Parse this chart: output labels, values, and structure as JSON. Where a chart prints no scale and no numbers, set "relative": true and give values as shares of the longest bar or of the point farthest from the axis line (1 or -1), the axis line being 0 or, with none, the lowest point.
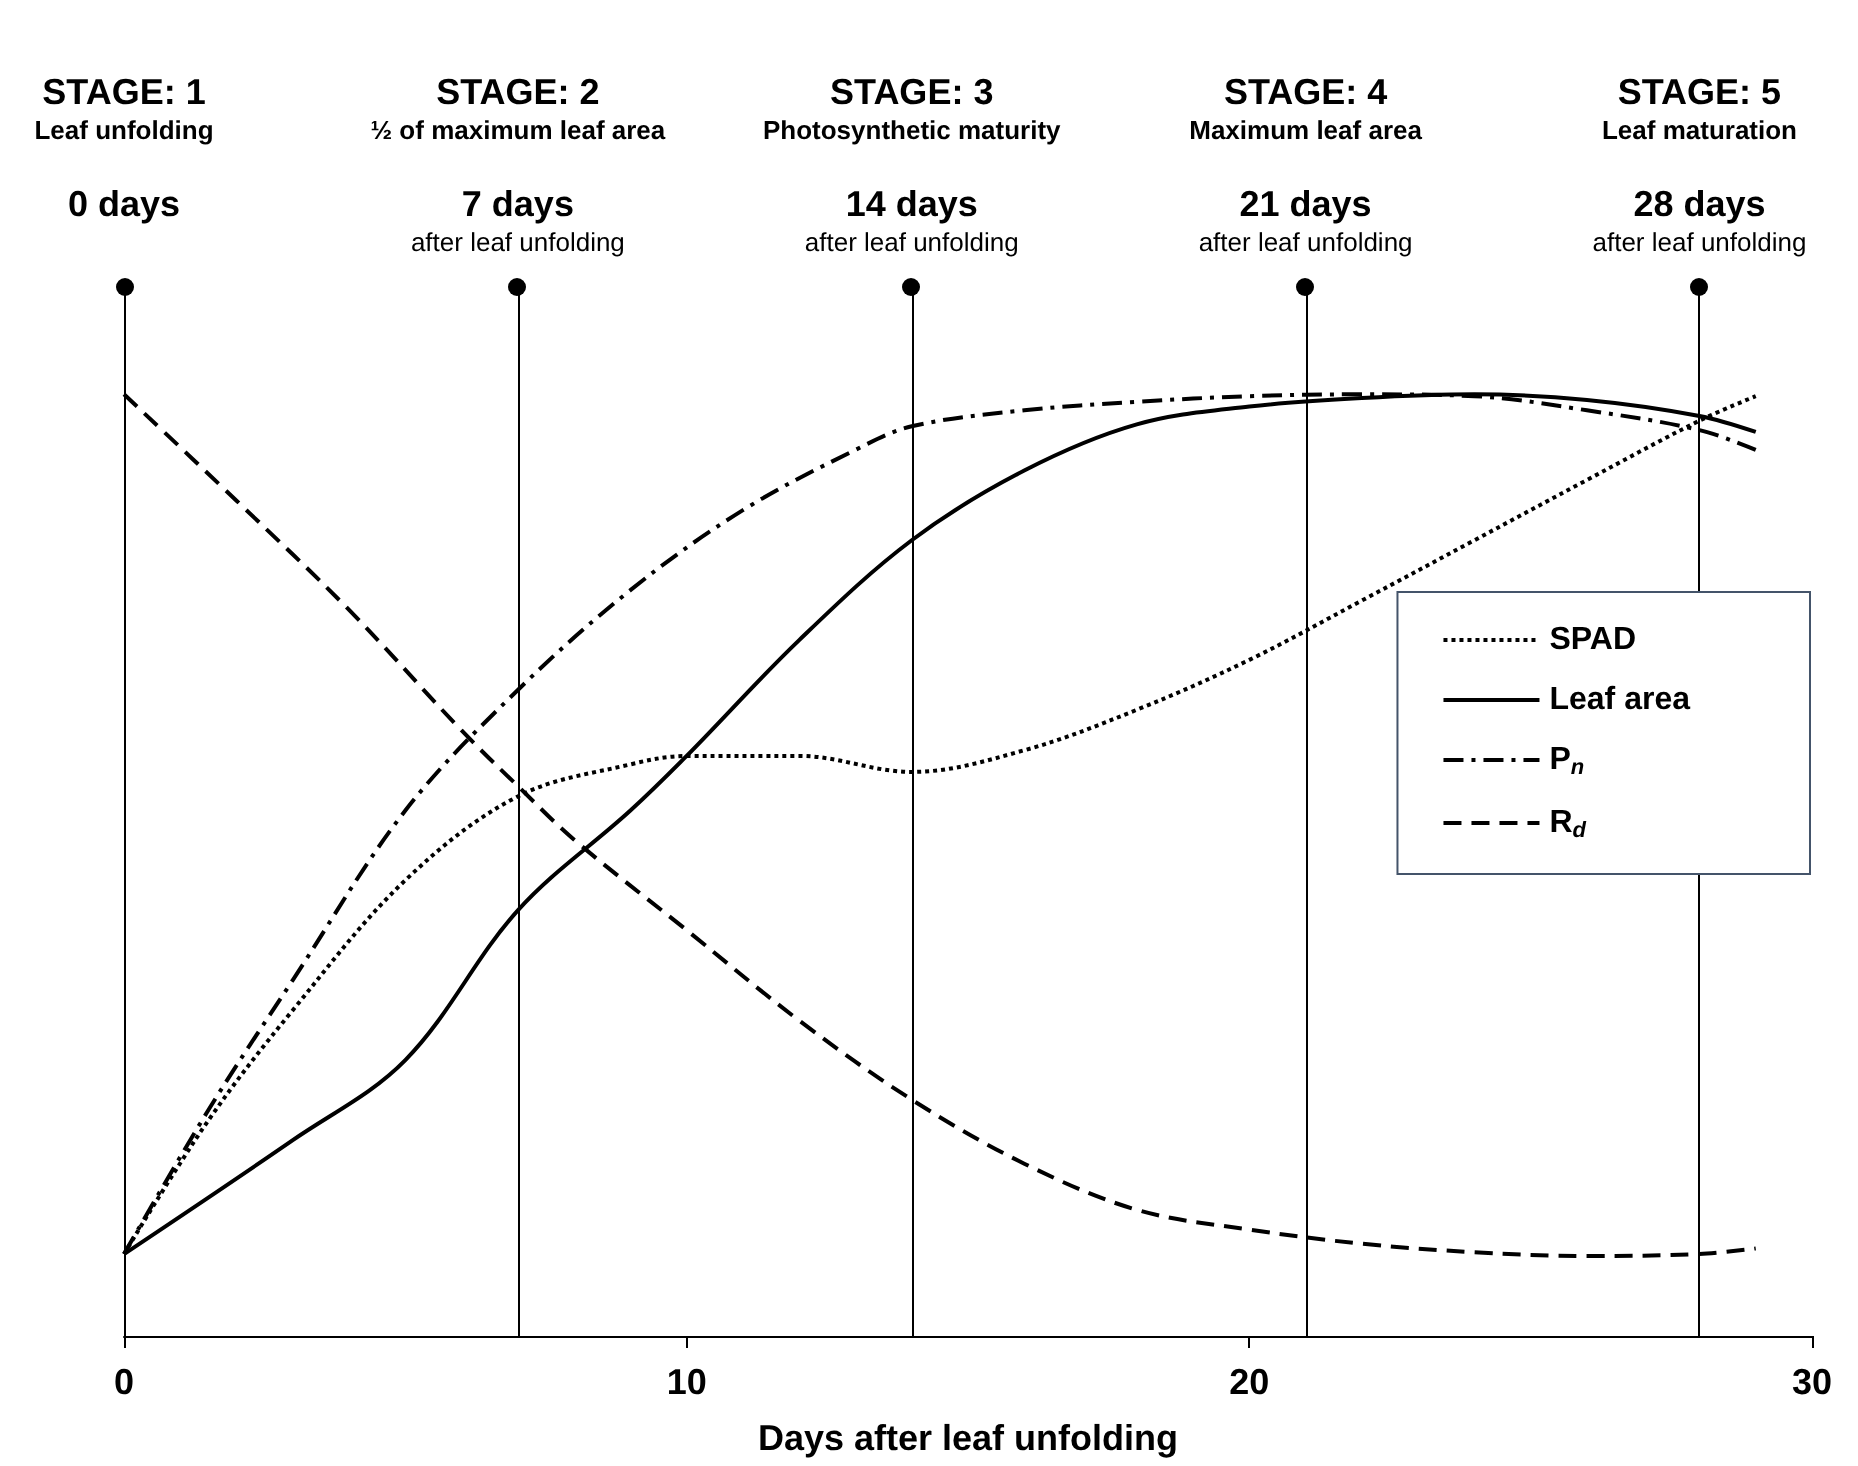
{
  "chart_data": {
    "type": "line",
    "relative": true,
    "xlabel": "Days after leaf unfolding",
    "xlim": [
      0,
      30
    ],
    "xticks": [
      0,
      10,
      20,
      30
    ],
    "grid": false,
    "legend": "right",
    "marker": "none",
    "series": [
      {
        "name": "SPAD",
        "color": "#000000",
        "line_style": "dotted",
        "x": [
          0,
          1.5,
          3,
          5,
          7,
          9,
          10,
          12,
          14,
          16,
          18,
          20,
          22,
          24,
          26,
          28,
          29
        ],
        "values": [
          0.087,
          0.229,
          0.346,
          0.484,
          0.573,
          0.607,
          0.616,
          0.616,
          0.599,
          0.622,
          0.665,
          0.718,
          0.781,
          0.845,
          0.909,
          0.972,
          0.998
        ]
      },
      {
        "name": "Leaf area",
        "color": "#000000",
        "line_style": "solid",
        "x": [
          0,
          3,
          5,
          7,
          9,
          10,
          12,
          14,
          16,
          18,
          20,
          22,
          24,
          26,
          28,
          29
        ],
        "values": [
          0.087,
          0.208,
          0.293,
          0.452,
          0.558,
          0.616,
          0.739,
          0.845,
          0.919,
          0.968,
          0.987,
          0.996,
          1.0,
          0.994,
          0.977,
          0.96
        ]
      },
      {
        "name": "P$_{n}$",
        "color": "#000000",
        "line_style": "dashdot",
        "x": [
          0,
          1.5,
          3,
          5,
          7,
          9,
          11,
          13,
          14,
          16,
          18,
          20,
          22,
          24,
          26,
          28,
          29
        ],
        "values": [
          0.087,
          0.24,
          0.378,
          0.558,
          0.686,
          0.792,
          0.877,
          0.941,
          0.966,
          0.983,
          0.992,
          0.998,
          1.0,
          0.998,
          0.983,
          0.962,
          0.941
        ]
      },
      {
        "name": "R$_{d}$",
        "color": "#000000",
        "line_style": "dashed",
        "x": [
          0,
          2,
          4,
          6,
          7,
          8,
          10,
          12,
          14,
          16,
          18,
          20,
          22,
          24,
          26,
          28,
          29
        ],
        "values": [
          1.0,
          0.887,
          0.771,
          0.643,
          0.584,
          0.527,
          0.431,
          0.335,
          0.251,
          0.183,
          0.134,
          0.113,
          0.098,
          0.089,
          0.085,
          0.087,
          0.093
        ]
      }
    ],
    "ref_lines": [
      {
        "axis": "x",
        "value": 0,
        "color": "#000000",
        "label": "STAGE: 1\nLeaf unfolding\n0 days"
      },
      {
        "axis": "x",
        "value": 7,
        "color": "#000000",
        "label": "STAGE: 2\n½ of maximum leaf area\n7 days\nafter leaf unfolding"
      },
      {
        "axis": "x",
        "value": 14,
        "color": "#000000",
        "label": "STAGE: 3\nPhotosynthetic maturity\n14 days\nafter leaf unfolding"
      },
      {
        "axis": "x",
        "value": 21,
        "color": "#000000",
        "label": "STAGE: 4\nMaximum leaf area\n21 days\nafter leaf unfolding"
      },
      {
        "axis": "x",
        "value": 28,
        "color": "#000000",
        "label": "STAGE: 5\nLeaf maturation\n28 days\nafter leaf unfolding"
      }
    ]
  }
}
